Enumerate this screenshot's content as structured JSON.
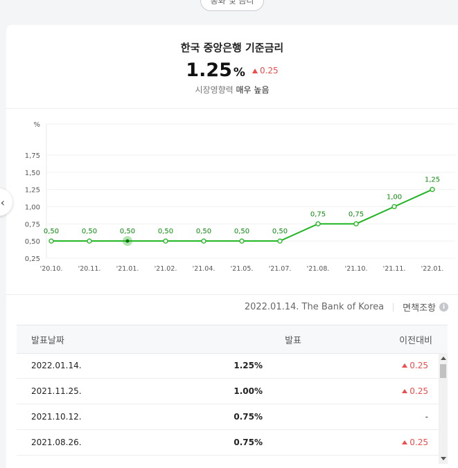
{
  "tab_pill": "통화 및 금리",
  "header": {
    "title": "한국 중앙은행 기준금리",
    "rate_value": "1.25",
    "rate_unit": "%",
    "rate_change": "0.25",
    "influence_label": "시장영향력",
    "influence_value": "매우 높음"
  },
  "chart_data": {
    "type": "line",
    "x_categories": [
      "'20.10.",
      "'20.11.",
      "'21.01.",
      "'21.02.",
      "'21.04.",
      "'21.05.",
      "'21.07.",
      "'21.08.",
      "'21.10.",
      "'21.11.",
      "'22.01."
    ],
    "values": [
      0.5,
      0.5,
      0.5,
      0.5,
      0.5,
      0.5,
      0.5,
      0.75,
      0.75,
      1.0,
      1.25
    ],
    "point_labels": [
      "0,50",
      "0,50",
      "0,50",
      "0,50",
      "0,50",
      "0,50",
      "0,50",
      "0,75",
      "0,75",
      "1,00",
      "1,25"
    ],
    "y_unit": "%",
    "y_ticks": [
      "1,75",
      "1,50",
      "1,25",
      "1,00",
      "0,75",
      "0,50",
      "0,25"
    ],
    "y_tick_values": [
      1.75,
      1.5,
      1.25,
      1.0,
      0.75,
      0.5,
      0.25
    ],
    "ylim": [
      0.25,
      1.75
    ],
    "highlighted_index": 2,
    "line_color": "#1db51d",
    "grid": true
  },
  "source": {
    "text": "2022.01.14. The Bank of Korea",
    "disclaimer": "면책조항",
    "info_icon": "info-icon"
  },
  "table": {
    "headers": {
      "date": "발표날짜",
      "value": "발표",
      "change": "이전대비"
    },
    "rows": [
      {
        "date": "2022.01.14.",
        "value": "1.25%",
        "change": "0.25",
        "direction": "up"
      },
      {
        "date": "2021.11.25.",
        "value": "1.00%",
        "change": "0.25",
        "direction": "up"
      },
      {
        "date": "2021.10.12.",
        "value": "0.75%",
        "change": "-",
        "direction": "none"
      },
      {
        "date": "2021.08.26.",
        "value": "0.75%",
        "change": "0.25",
        "direction": "up"
      }
    ]
  },
  "colors": {
    "up": "#f04b4b",
    "line": "#1db51d"
  }
}
